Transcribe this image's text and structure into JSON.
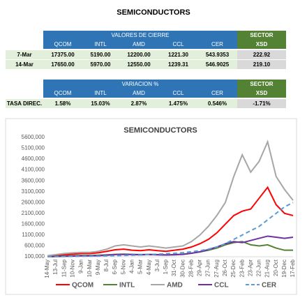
{
  "header": {
    "title": "SEMICONDUCTORS"
  },
  "table1": {
    "group_header": "VALORES DE CIERRE",
    "sector_header": "SECTOR",
    "columns": [
      "QCOM",
      "INTL",
      "AMD",
      "CCL",
      "CER",
      "XSD"
    ],
    "rows": [
      [
        "7-Mar",
        "17375.00",
        "5190.00",
        "12200.00",
        "1221.30",
        "543.9353",
        "222.92"
      ],
      [
        "14-Mar",
        "17650.00",
        "5970.00",
        "12550.00",
        "1239.31",
        "546.9025",
        "219.10"
      ]
    ]
  },
  "table2": {
    "group_header": "VARIACION %",
    "sector_header": "SECTOR",
    "columns": [
      "QCOM",
      "INTL",
      "AMD",
      "CCL",
      "CER",
      "XSD"
    ],
    "rows": [
      [
        "TASA DIREC.",
        "1.58%",
        "15.03%",
        "2.87%",
        "1.475%",
        "0.546%",
        "-1.71%"
      ]
    ]
  },
  "chart_data": {
    "type": "line",
    "title": "SEMICONDUCTORS",
    "categories": [
      "14-May",
      "13-Jul",
      "11-Sep",
      "10-Nov",
      "9-Jan",
      "10-Mar",
      "9-May",
      "8-Jul",
      "6-Sep",
      "5-Nov",
      "4-Jan",
      "5-Mar",
      "4-May",
      "3-Jul",
      "1-Sep",
      "31-Oct",
      "30-Dec",
      "28-Feb",
      "29-Apr",
      "27-Jun",
      "27-Aug",
      "26-Oct",
      "25-Dec",
      "23-Feb",
      "23-Apr",
      "22-Jun",
      "21-Aug",
      "20-Oct",
      "19-Dec",
      "17-Feb"
    ],
    "series": [
      {
        "name": "QCOM",
        "color": "#ff0000",
        "values": [
          120000,
          150000,
          200000,
          220000,
          250000,
          250000,
          280000,
          350000,
          420000,
          450000,
          400000,
          380000,
          420000,
          380000,
          350000,
          400000,
          450000,
          550000,
          700000,
          900000,
          1200000,
          1600000,
          2000000,
          2200000,
          2300000,
          2800000,
          3300000,
          2500000,
          2100000,
          2000000
        ]
      },
      {
        "name": "INTL",
        "color": "#548235",
        "values": [
          100000,
          120000,
          140000,
          150000,
          160000,
          160000,
          170000,
          190000,
          210000,
          220000,
          210000,
          200000,
          210000,
          200000,
          190000,
          200000,
          220000,
          260000,
          320000,
          400000,
          500000,
          650000,
          750000,
          800000,
          650000,
          600000,
          650000,
          500000,
          400000,
          400000
        ]
      },
      {
        "name": "AMD",
        "color": "#a6a6a6",
        "values": [
          150000,
          200000,
          250000,
          280000,
          300000,
          300000,
          350000,
          450000,
          600000,
          650000,
          600000,
          550000,
          600000,
          550000,
          500000,
          550000,
          600000,
          800000,
          1100000,
          1500000,
          2000000,
          2600000,
          3800000,
          4800000,
          4000000,
          4500000,
          5400000,
          3800000,
          3200000,
          2700000
        ]
      },
      {
        "name": "CCL",
        "color": "#7030a0",
        "values": [
          100000,
          110000,
          120000,
          130000,
          140000,
          140000,
          150000,
          170000,
          200000,
          210000,
          200000,
          190000,
          200000,
          190000,
          180000,
          190000,
          210000,
          260000,
          330000,
          430000,
          550000,
          700000,
          800000,
          750000,
          850000,
          950000,
          1050000,
          1000000,
          950000,
          1000000
        ]
      },
      {
        "name": "CER",
        "color": "#5b9bd5",
        "dashed": true,
        "values": [
          100000,
          105000,
          110000,
          115000,
          120000,
          125000,
          130000,
          140000,
          150000,
          160000,
          170000,
          180000,
          200000,
          220000,
          240000,
          260000,
          290000,
          330000,
          380000,
          450000,
          550000,
          700000,
          900000,
          1100000,
          1300000,
          1500000,
          1800000,
          2100000,
          2400000,
          2600000
        ]
      }
    ],
    "ylim": [
      100000,
      5600000
    ],
    "yticks": [
      {
        "value": 100000,
        "label": "100,000"
      },
      {
        "value": 600000,
        "label": "600,000"
      },
      {
        "value": 1100000,
        "label": "1100,000"
      },
      {
        "value": 1600000,
        "label": "1600,000"
      },
      {
        "value": 2100000,
        "label": "2100,000"
      },
      {
        "value": 2600000,
        "label": "2600,000"
      },
      {
        "value": 3100000,
        "label": "3100,000"
      },
      {
        "value": 3600000,
        "label": "3600,000"
      },
      {
        "value": 4100000,
        "label": "4100,000"
      },
      {
        "value": 4600000,
        "label": "4600,000"
      },
      {
        "value": 5100000,
        "label": "5100,000"
      },
      {
        "value": 5600000,
        "label": "5600,000"
      }
    ],
    "grid": false
  }
}
